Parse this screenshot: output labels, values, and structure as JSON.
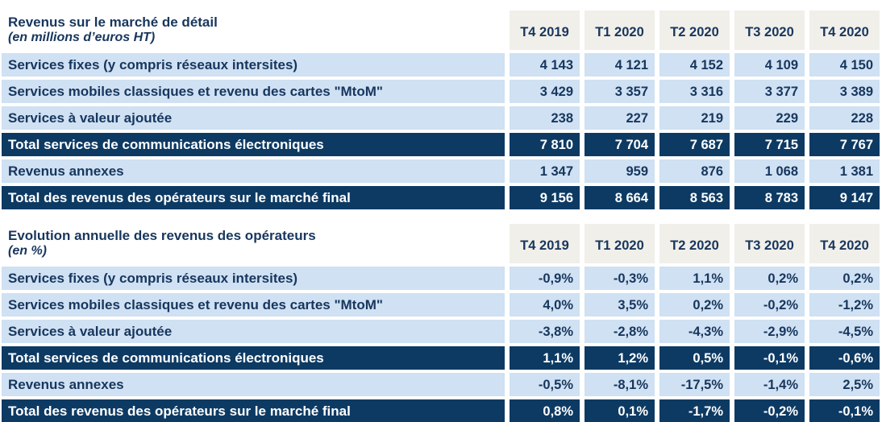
{
  "colors": {
    "total_row_bg": "#0d3a63",
    "data_row_bg": "#cfe1f3",
    "header_bg": "#f1efe9",
    "text_navy": "#17365d",
    "total_text": "#ffffff"
  },
  "tables": [
    {
      "title": "Revenus sur le marché de détail",
      "subtitle": "(en millions d’euros HT)",
      "columns": [
        "T4 2019",
        "T1 2020",
        "T2 2020",
        "T3 2020",
        "T4 2020"
      ],
      "rows": [
        {
          "label": "Services fixes (y compris réseaux intersites)",
          "type": "normal",
          "values": [
            "4 143",
            "4 121",
            "4 152",
            "4 109",
            "4 150"
          ]
        },
        {
          "label": "Services mobiles classiques et revenu des cartes \"MtoM\"",
          "type": "normal",
          "values": [
            "3 429",
            "3 357",
            "3 316",
            "3 377",
            "3 389"
          ]
        },
        {
          "label": "Services à valeur ajoutée",
          "type": "normal",
          "values": [
            "238",
            "227",
            "219",
            "229",
            "228"
          ]
        },
        {
          "label": "Total services de communications électroniques",
          "type": "total",
          "values": [
            "7 810",
            "7 704",
            "7 687",
            "7 715",
            "7 767"
          ]
        },
        {
          "label": "Revenus annexes",
          "type": "normal",
          "values": [
            "1 347",
            "959",
            "876",
            "1 068",
            "1 381"
          ]
        },
        {
          "label": "Total des revenus des opérateurs sur le marché final",
          "type": "total",
          "values": [
            "9 156",
            "8 664",
            "8 563",
            "8 783",
            "9 147"
          ]
        }
      ]
    },
    {
      "title": "Evolution annuelle des revenus des opérateurs",
      "subtitle": "(en %)",
      "columns": [
        "T4 2019",
        "T1 2020",
        "T2 2020",
        "T3 2020",
        "T4 2020"
      ],
      "rows": [
        {
          "label": "Services fixes (y compris réseaux intersites)",
          "type": "normal",
          "values": [
            "-0,9%",
            "-0,3%",
            "1,1%",
            "0,2%",
            "0,2%"
          ]
        },
        {
          "label": "Services mobiles classiques et revenu des cartes \"MtoM\"",
          "type": "normal",
          "values": [
            "4,0%",
            "3,5%",
            "0,2%",
            "-0,2%",
            "-1,2%"
          ]
        },
        {
          "label": "Services à valeur ajoutée",
          "type": "normal",
          "values": [
            "-3,8%",
            "-2,8%",
            "-4,3%",
            "-2,9%",
            "-4,5%"
          ]
        },
        {
          "label": "Total services de communications électroniques",
          "type": "total",
          "values": [
            "1,1%",
            "1,2%",
            "0,5%",
            "-0,1%",
            "-0,6%"
          ]
        },
        {
          "label": "Revenus annexes",
          "type": "normal",
          "values": [
            "-0,5%",
            "-8,1%",
            "-17,5%",
            "-1,4%",
            "2,5%"
          ]
        },
        {
          "label": "Total des revenus des opérateurs sur le marché final",
          "type": "total",
          "values": [
            "0,8%",
            "0,1%",
            "-1,7%",
            "-0,2%",
            "-0,1%"
          ]
        }
      ]
    }
  ]
}
